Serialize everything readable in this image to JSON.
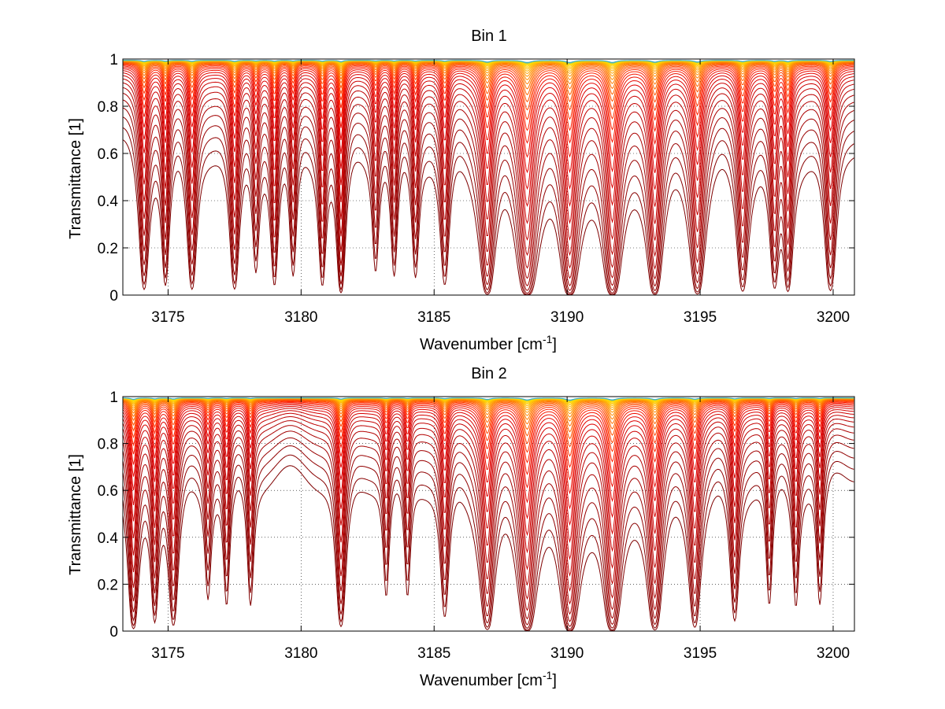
{
  "chart_data": [
    {
      "type": "line",
      "title": "Bin 1",
      "xlabel": "Wavenumber [cm",
      "xlabel_sup": "-1",
      "xlabel_end": "]",
      "ylabel": "Transmittance [1]",
      "xlim": [
        3173.3,
        3200.8
      ],
      "ylim": [
        0,
        1
      ],
      "xticks": [
        3175,
        3180,
        3185,
        3190,
        3195,
        3200
      ],
      "xtick_labels": [
        "3175",
        "3180",
        "3185",
        "3190",
        "3195",
        "3200"
      ],
      "yticks": [
        0,
        0.2,
        0.4,
        0.6,
        0.8,
        1
      ],
      "ytick_labels": [
        "0",
        "0.2",
        "0.4",
        "0.6",
        "0.8",
        "1"
      ],
      "grid": true,
      "colormap": [
        "#7f0000",
        "#a00000",
        "#c00000",
        "#e00000",
        "#ff2000",
        "#ff6000",
        "#ff9000",
        "#ffc000",
        "#ffe000",
        "#00a0ff",
        "#0040c0"
      ],
      "n_series": 34,
      "absorption_lines": [
        {
          "x": 3174.1,
          "depth": 0.55,
          "width": 0.12
        },
        {
          "x": 3174.9,
          "depth": 0.45,
          "width": 0.1
        },
        {
          "x": 3175.9,
          "depth": 0.55,
          "width": 0.12
        },
        {
          "x": 3177.5,
          "depth": 0.55,
          "width": 0.12
        },
        {
          "x": 3178.3,
          "depth": 0.3,
          "width": 0.1
        },
        {
          "x": 3179.0,
          "depth": 0.45,
          "width": 0.1
        },
        {
          "x": 3179.7,
          "depth": 0.35,
          "width": 0.1
        },
        {
          "x": 3180.8,
          "depth": 0.45,
          "width": 0.1
        },
        {
          "x": 3181.5,
          "depth": 0.7,
          "width": 0.1
        },
        {
          "x": 3182.8,
          "depth": 0.3,
          "width": 0.1
        },
        {
          "x": 3183.5,
          "depth": 0.35,
          "width": 0.1
        },
        {
          "x": 3184.3,
          "depth": 0.35,
          "width": 0.1
        },
        {
          "x": 3185.4,
          "depth": 0.45,
          "width": 0.12
        },
        {
          "x": 3187.0,
          "depth": 0.85,
          "width": 0.16
        },
        {
          "x": 3188.5,
          "depth": 1.1,
          "width": 0.2
        },
        {
          "x": 3190.1,
          "depth": 1.1,
          "width": 0.18
        },
        {
          "x": 3191.7,
          "depth": 1.1,
          "width": 0.18
        },
        {
          "x": 3193.3,
          "depth": 0.9,
          "width": 0.16
        },
        {
          "x": 3194.9,
          "depth": 0.8,
          "width": 0.16
        },
        {
          "x": 3196.6,
          "depth": 0.6,
          "width": 0.14
        },
        {
          "x": 3197.8,
          "depth": 0.5,
          "width": 0.12
        },
        {
          "x": 3198.3,
          "depth": 0.6,
          "width": 0.12
        },
        {
          "x": 3199.9,
          "depth": 0.6,
          "width": 0.14
        }
      ]
    },
    {
      "type": "line",
      "title": "Bin 2",
      "xlabel": "Wavenumber [cm",
      "xlabel_sup": "-1",
      "xlabel_end": "]",
      "ylabel": "Transmittance [1]",
      "xlim": [
        3173.3,
        3200.8
      ],
      "ylim": [
        0,
        1
      ],
      "xticks": [
        3175,
        3180,
        3185,
        3190,
        3195,
        3200
      ],
      "xtick_labels": [
        "3175",
        "3180",
        "3185",
        "3190",
        "3195",
        "3200"
      ],
      "yticks": [
        0,
        0.2,
        0.4,
        0.6,
        0.8,
        1
      ],
      "ytick_labels": [
        "0",
        "0.2",
        "0.4",
        "0.6",
        "0.8",
        "1"
      ],
      "grid": true,
      "colormap": [
        "#7f0000",
        "#a00000",
        "#c00000",
        "#e00000",
        "#ff2000",
        "#ff6000",
        "#ff9000",
        "#ffc000",
        "#ffe000",
        "#00a0ff",
        "#0040c0"
      ],
      "n_series": 34,
      "absorption_lines": [
        {
          "x": 3173.7,
          "depth": 0.7,
          "width": 0.12
        },
        {
          "x": 3174.5,
          "depth": 0.45,
          "width": 0.1
        },
        {
          "x": 3175.2,
          "depth": 0.55,
          "width": 0.12
        },
        {
          "x": 3176.5,
          "depth": 0.25,
          "width": 0.1
        },
        {
          "x": 3177.2,
          "depth": 0.3,
          "width": 0.1
        },
        {
          "x": 3178.1,
          "depth": 0.3,
          "width": 0.1
        },
        {
          "x": 3181.5,
          "depth": 0.6,
          "width": 0.12
        },
        {
          "x": 3183.2,
          "depth": 0.25,
          "width": 0.1
        },
        {
          "x": 3184.0,
          "depth": 0.25,
          "width": 0.1
        },
        {
          "x": 3185.4,
          "depth": 0.4,
          "width": 0.12
        },
        {
          "x": 3187.0,
          "depth": 0.75,
          "width": 0.16
        },
        {
          "x": 3188.5,
          "depth": 1.0,
          "width": 0.18
        },
        {
          "x": 3190.1,
          "depth": 1.1,
          "width": 0.18
        },
        {
          "x": 3191.7,
          "depth": 1.0,
          "width": 0.18
        },
        {
          "x": 3193.3,
          "depth": 0.8,
          "width": 0.16
        },
        {
          "x": 3194.8,
          "depth": 0.6,
          "width": 0.14
        },
        {
          "x": 3196.3,
          "depth": 0.45,
          "width": 0.12
        },
        {
          "x": 3197.6,
          "depth": 0.3,
          "width": 0.1
        },
        {
          "x": 3198.6,
          "depth": 0.3,
          "width": 0.1
        },
        {
          "x": 3199.5,
          "depth": 0.3,
          "width": 0.1
        }
      ]
    }
  ]
}
